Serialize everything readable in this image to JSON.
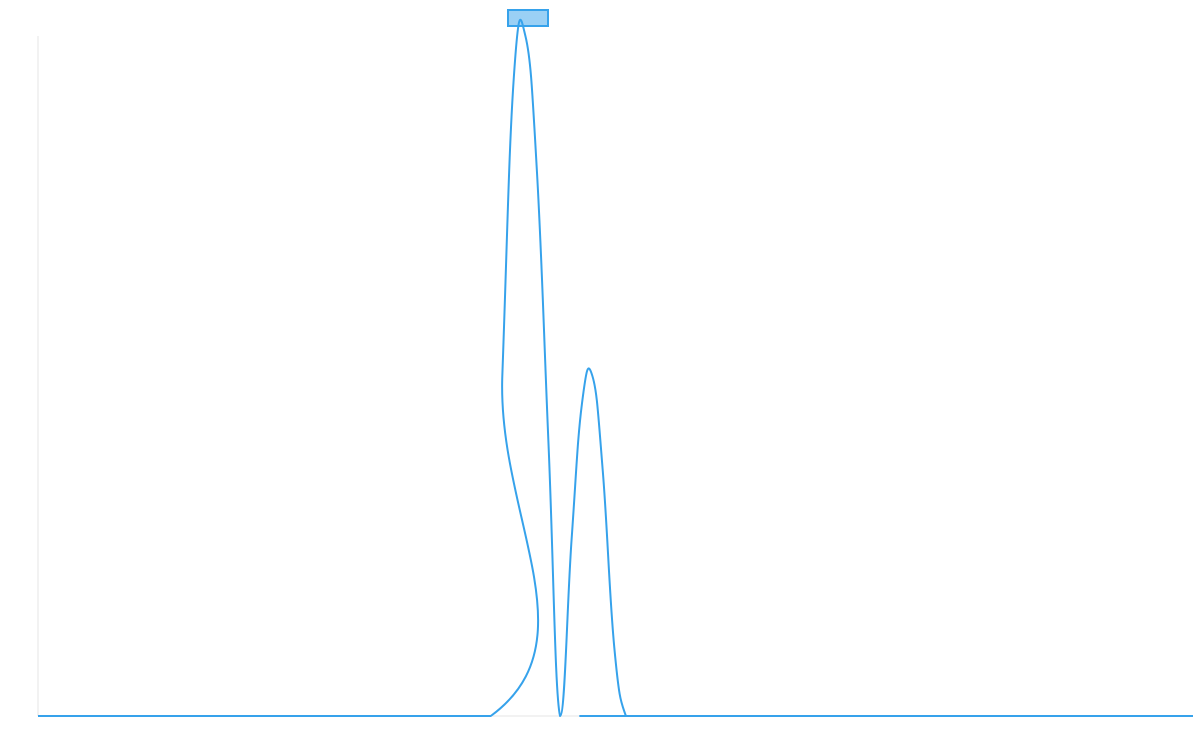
{
  "chart_data": {
    "type": "line",
    "title": "",
    "xlabel": "",
    "ylabel": "",
    "xlim": [
      0,
      100
    ],
    "ylim": [
      0,
      1
    ],
    "grid": false,
    "legend": {
      "position": "top-center",
      "entries": [
        {
          "name": "",
          "color": "#36a2eb",
          "fill": "#9ad0f5"
        }
      ]
    },
    "series": [
      {
        "color": "#36a2eb",
        "x": [
          0,
          39.2,
          40.2,
          41.2,
          42.2,
          43.2,
          44.2,
          45.2,
          46.2,
          47.1,
          48.0,
          48.9,
          49.9,
          50.9,
          51.9,
          100
        ],
        "y": [
          0,
          0,
          0.5,
          0.94,
          1.0,
          0.8,
          0.4,
          0.0,
          0.26,
          0.46,
          0.5,
          0.36,
          0.1,
          0.0,
          0.0,
          0
        ]
      }
    ]
  }
}
